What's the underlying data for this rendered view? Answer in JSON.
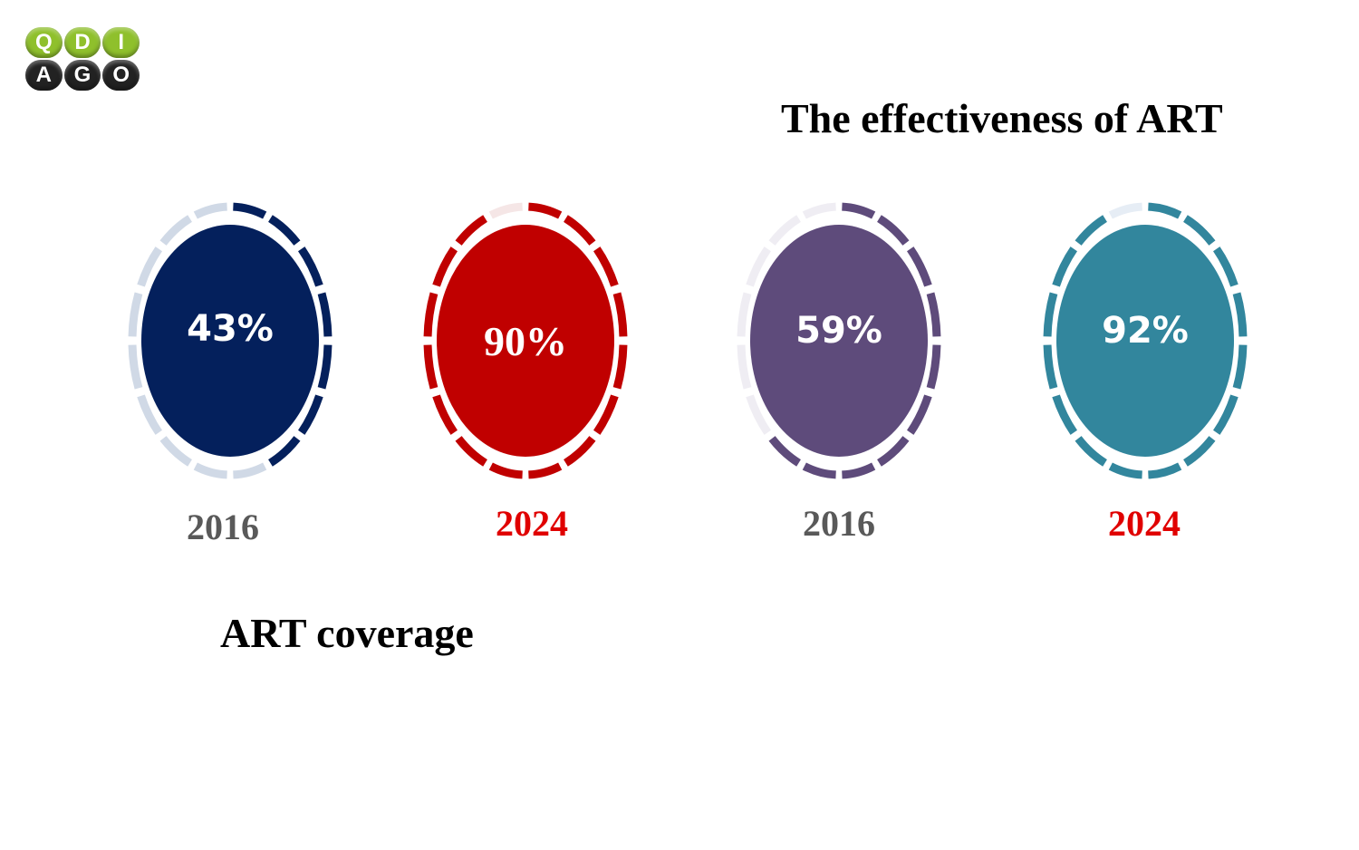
{
  "logo": {
    "row1": [
      "Q",
      "D",
      "I"
    ],
    "row2": [
      "A",
      "G",
      "O"
    ]
  },
  "headings": {
    "effectiveness": "The effectiveness of ART",
    "coverage": "ART coverage"
  },
  "chart_data": [
    {
      "type": "gauge",
      "group": "ART coverage",
      "label": "2016",
      "value": 43,
      "display": "43%",
      "segments": 16,
      "filled_segments": 7,
      "color": "#04205c",
      "track_color": "#d0d9e6",
      "label_color": "#595959"
    },
    {
      "type": "gauge",
      "group": "ART coverage",
      "label": "2024",
      "value": 90,
      "display": "90%",
      "segments": 16,
      "filled_segments": 15,
      "color": "#c00000",
      "track_color": "#f5e6e6",
      "label_color": "#e00000"
    },
    {
      "type": "gauge",
      "group": "The effectiveness of ART",
      "label": "2016",
      "value": 59,
      "display": "59%",
      "segments": 16,
      "filled_segments": 10,
      "color": "#5e4b7b",
      "track_color": "#efedf3",
      "label_color": "#595959"
    },
    {
      "type": "gauge",
      "group": "The effectiveness of ART",
      "label": "2024",
      "value": 92,
      "display": "92%",
      "segments": 16,
      "filled_segments": 15,
      "color": "#32869d",
      "track_color": "#e6edf5",
      "label_color": "#e00000"
    }
  ]
}
